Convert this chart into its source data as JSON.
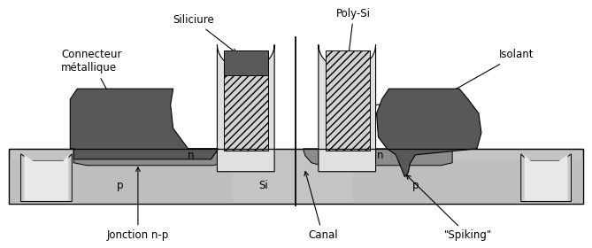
{
  "colors": {
    "white_bg": "#ffffff",
    "si_substrate": "#c8c8c8",
    "p_region": "#c0c0c0",
    "n_region": "#909090",
    "metal_dark": "#555555",
    "silicide_dark": "#606060",
    "poly_hatch_bg": "#d4d4d4",
    "gate_oxide_light": "#e8e8e8",
    "sti_outer": "#c8c8c8",
    "sti_inner": "#e8e8e8",
    "isolant_dark": "#606060"
  },
  "labels": {
    "connecteur": "Connecteur\nmétallique",
    "siliciure": "Siliciure",
    "poly_si": "Poly-Si",
    "isolant": "Isolant",
    "jonction": "Jonction n-p",
    "canal": "Canal",
    "spiking": "\"Spiking\"",
    "n_left": "n",
    "n_right": "n",
    "p_left": "p",
    "p_right": "p",
    "si": "Si"
  }
}
